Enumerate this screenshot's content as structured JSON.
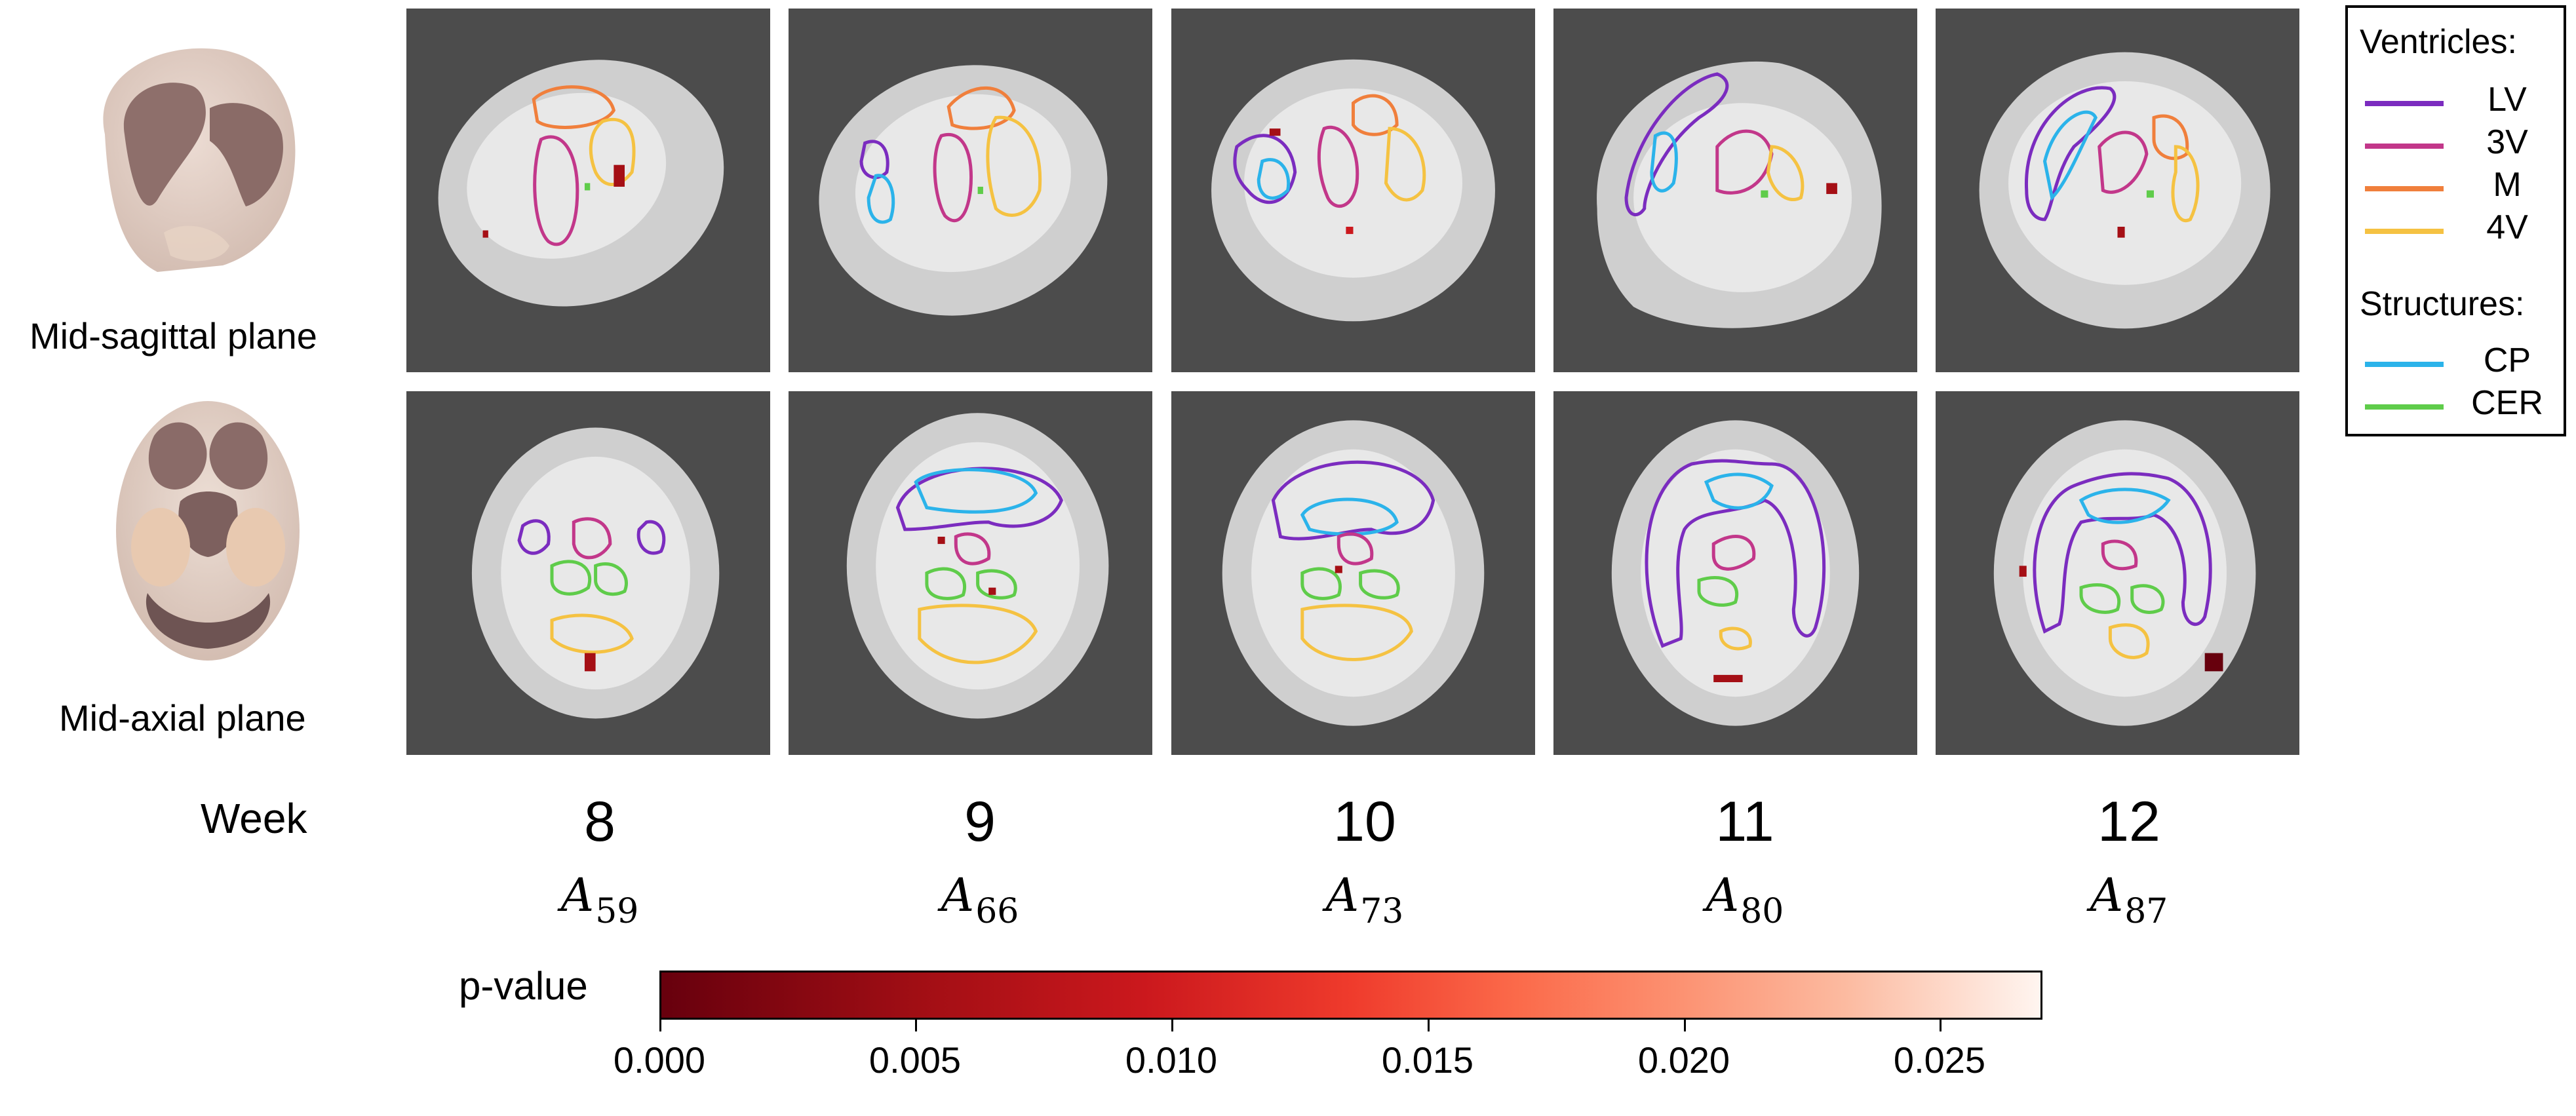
{
  "rows": [
    {
      "label": "Mid-sagittal plane"
    },
    {
      "label": "Mid-axial plane"
    }
  ],
  "columns": [
    {
      "week": "8",
      "atlas_base": "A",
      "atlas_sub": "59"
    },
    {
      "week": "9",
      "atlas_base": "A",
      "atlas_sub": "66"
    },
    {
      "week": "10",
      "atlas_base": "A",
      "atlas_sub": "73"
    },
    {
      "week": "11",
      "atlas_base": "A",
      "atlas_sub": "80"
    },
    {
      "week": "12",
      "atlas_base": "A",
      "atlas_sub": "87"
    }
  ],
  "week_label": "Week",
  "legend": {
    "ventricles_title": "Ventricles:",
    "structures_title": "Structures:",
    "items": [
      {
        "label": "LV",
        "color": "#7b2cbf"
      },
      {
        "label": "3V",
        "color": "#c2378a"
      },
      {
        "label": "M",
        "color": "#f07f3c"
      },
      {
        "label": "4V",
        "color": "#f5c242"
      },
      {
        "label": "CP",
        "color": "#2bb3ea"
      },
      {
        "label": "CER",
        "color": "#5fcc4a"
      }
    ]
  },
  "colorbar": {
    "label": "p-value",
    "min": 0.0,
    "max": 0.027,
    "ticks": [
      "0.000",
      "0.005",
      "0.010",
      "0.015",
      "0.020",
      "0.025"
    ],
    "tick_values": [
      0.0,
      0.005,
      0.01,
      0.015,
      0.02,
      0.025
    ]
  }
}
